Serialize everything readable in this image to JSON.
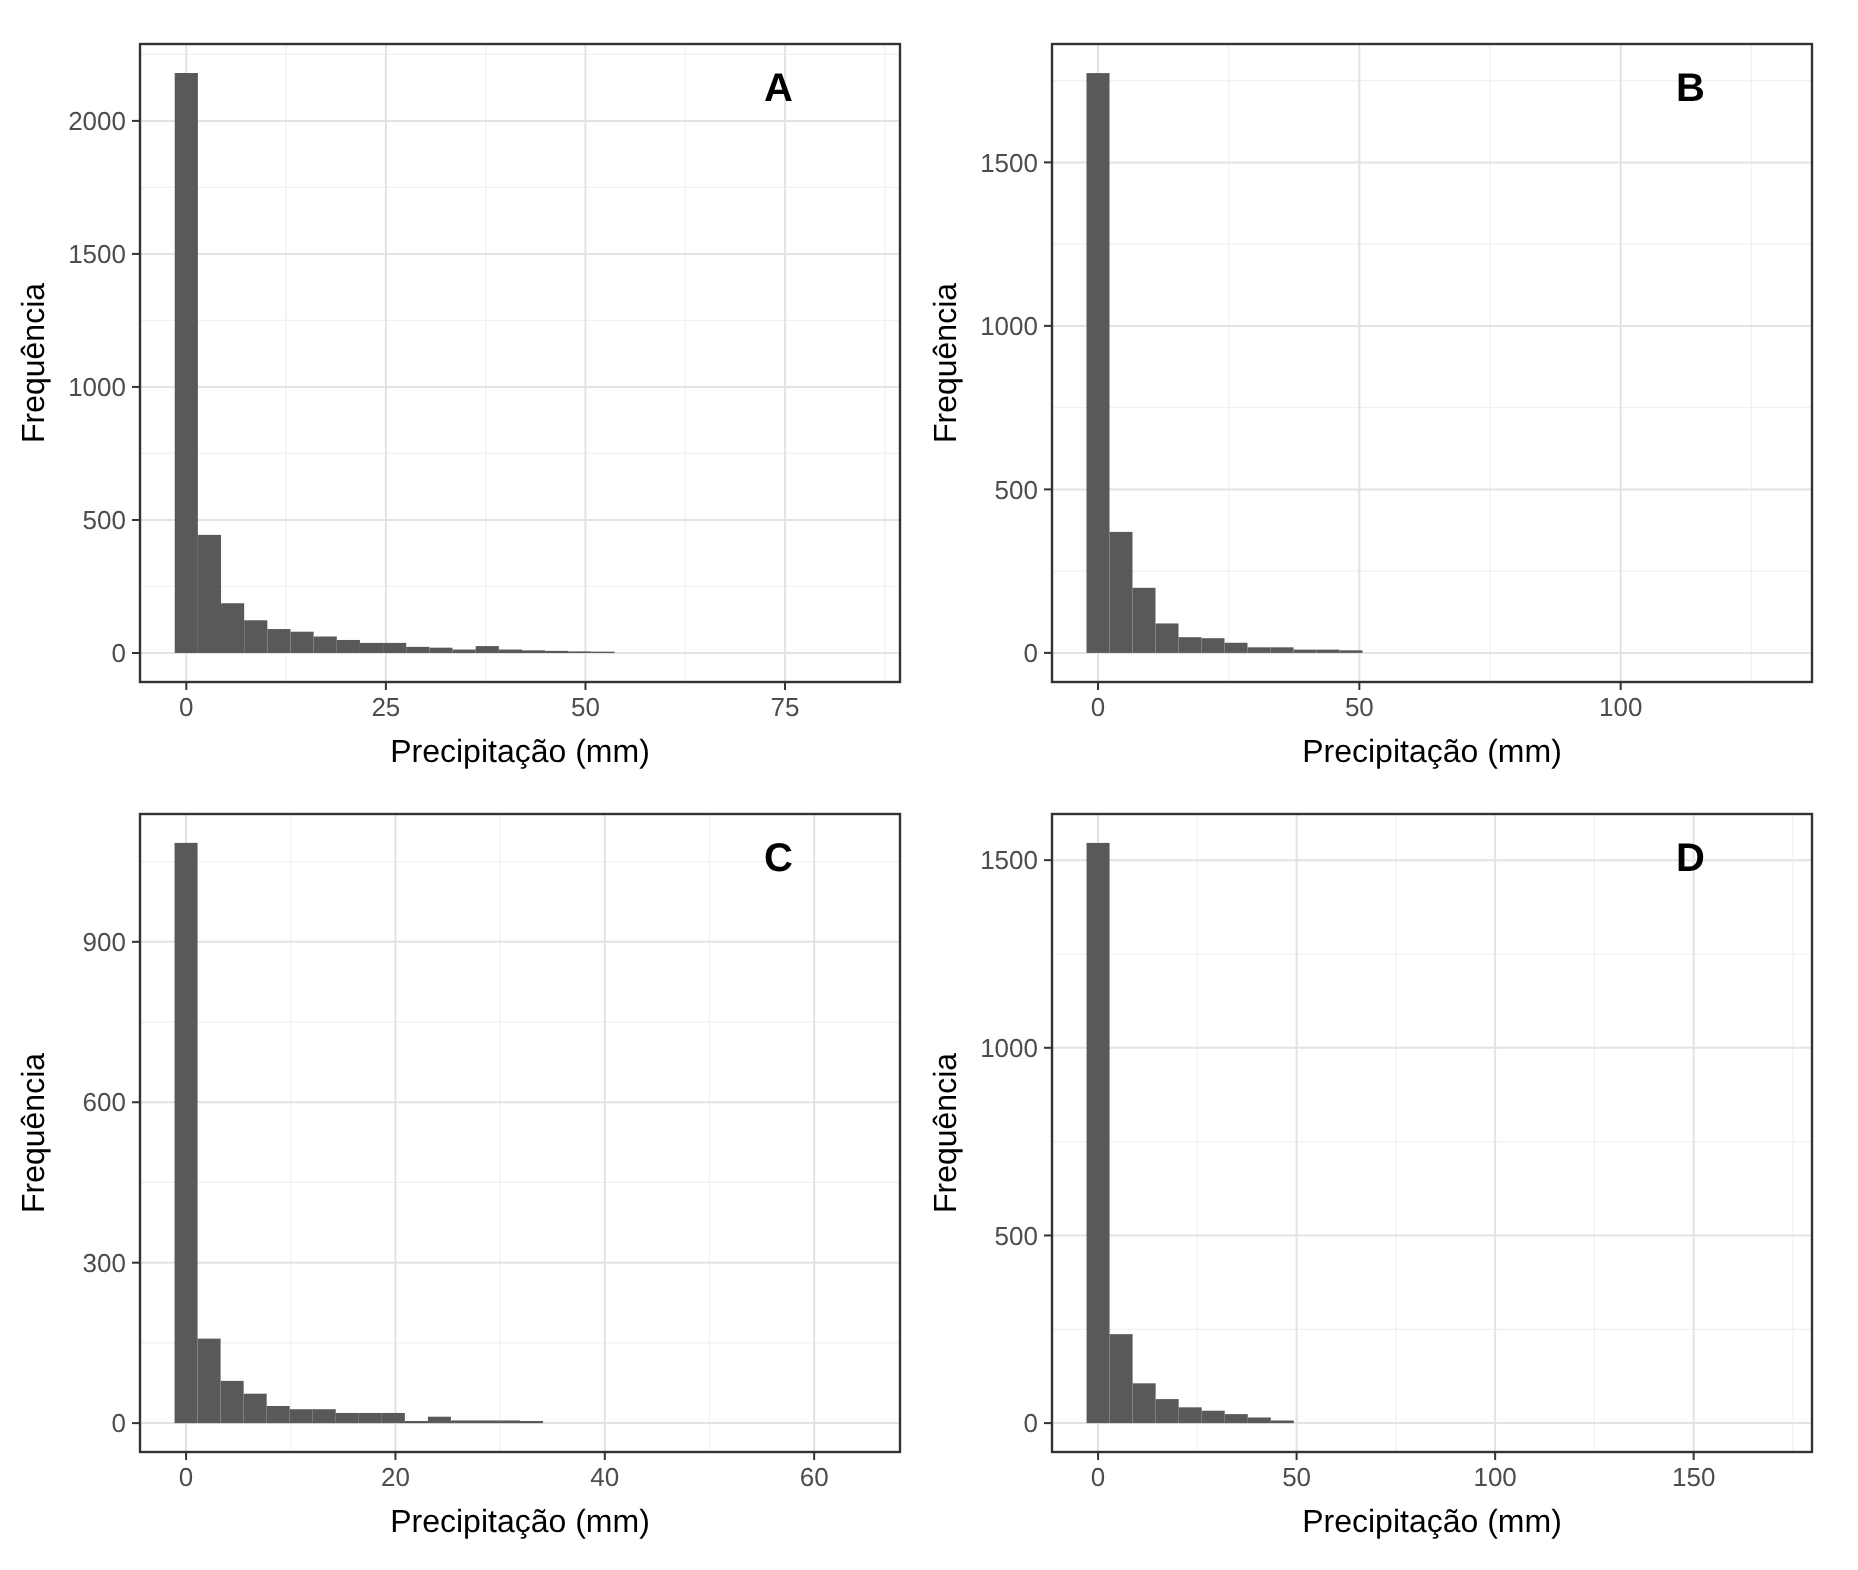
{
  "chart_data": [
    {
      "type": "histogram",
      "xlabel": "Precipitação (mm)",
      "ylabel": "Frequência",
      "annotations": [
        "A"
      ],
      "color": "#595959",
      "grid": true,
      "bins": [
        -1.45,
        1.45,
        4.35,
        7.25,
        10.15,
        13.05,
        15.95,
        18.85,
        21.75,
        24.65,
        27.55,
        30.45,
        33.35,
        36.25,
        39.15,
        42.05,
        44.95,
        47.85,
        50.75,
        53.65
      ],
      "values": [
        2180,
        444,
        187,
        123,
        90,
        80,
        62,
        49,
        38,
        38,
        23,
        20,
        13,
        26,
        13,
        10,
        8,
        6,
        5
      ],
      "xlim": [
        -5.8,
        89.4
      ],
      "xticks": [
        0,
        25,
        50,
        75
      ],
      "ylim": [
        -109,
        2289
      ],
      "yticks": [
        0,
        500,
        1000,
        1500,
        2000
      ]
    },
    {
      "type": "histogram",
      "xlabel": "Precipitação (mm)",
      "ylabel": "Frequência",
      "annotations": [
        "B"
      ],
      "color": "#595959",
      "grid": true,
      "bins": [
        -2.2,
        2.2,
        6.6,
        11,
        15.4,
        19.8,
        24.2,
        28.6,
        33,
        37.4,
        41.8,
        46.2,
        50.6
      ],
      "values": [
        1773,
        370,
        199,
        90,
        48,
        45,
        31,
        17,
        17,
        10,
        10,
        8
      ],
      "xlim": [
        -8.8,
        136.6
      ],
      "xticks": [
        0,
        50,
        100
      ],
      "ylim": [
        -89,
        1862
      ],
      "yticks": [
        0,
        500,
        1000,
        1500
      ]
    },
    {
      "type": "histogram",
      "xlabel": "Precipitação (mm)",
      "ylabel": "Frequência",
      "annotations": [
        "C"
      ],
      "color": "#595959",
      "grid": true,
      "bins": [
        -1.1,
        1.1,
        3.3,
        5.5,
        7.7,
        9.9,
        12.1,
        14.3,
        16.5,
        18.7,
        20.9,
        23.1,
        25.3,
        27.5,
        29.7,
        31.9,
        34.1
      ],
      "values": [
        1085,
        158,
        79,
        55,
        32,
        26,
        26,
        19,
        19,
        19,
        4,
        12,
        5,
        5,
        5,
        4
      ],
      "xlim": [
        -4.4,
        68.2
      ],
      "xticks": [
        0,
        20,
        40,
        60
      ],
      "ylim": [
        -54,
        1139
      ],
      "yticks": [
        0,
        300,
        600,
        900
      ]
    },
    {
      "type": "histogram",
      "xlabel": "Precipitação (mm)",
      "ylabel": "Frequência",
      "annotations": [
        "D"
      ],
      "color": "#595959",
      "grid": true,
      "bins": [
        -2.9,
        2.9,
        8.7,
        14.5,
        20.3,
        26.1,
        31.9,
        37.7,
        43.5,
        49.3
      ],
      "values": [
        1546,
        237,
        106,
        64,
        42,
        33,
        24,
        15,
        7
      ],
      "xlim": [
        -11.6,
        179.8
      ],
      "xticks": [
        0,
        50,
        100,
        150
      ],
      "ylim": [
        -77,
        1623
      ],
      "yticks": [
        0,
        500,
        1000,
        1500
      ]
    }
  ]
}
